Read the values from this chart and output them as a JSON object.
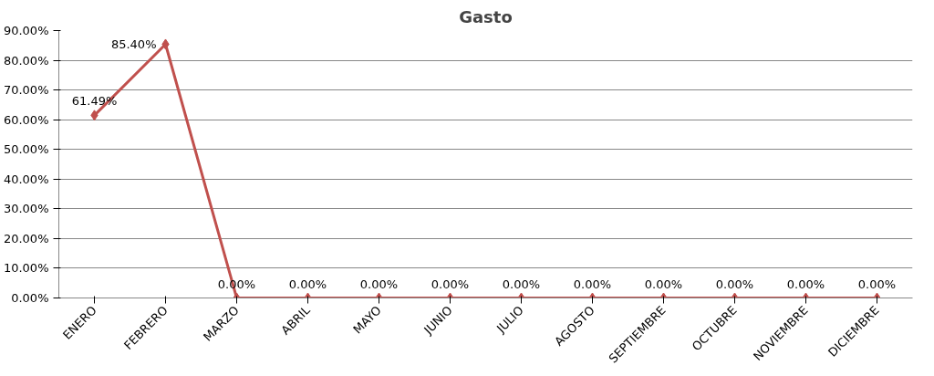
{
  "chart_data": {
    "type": "line",
    "title": "Gasto",
    "categories": [
      "ENERO",
      "FEBRERO",
      "MARZO",
      "ABRIL",
      "MAYO",
      "JUNIO",
      "JULIO",
      "AGOSTO",
      "SEPTIEMBRE",
      "OCTUBRE",
      "NOVIEMBRE",
      "DICIEMBRE"
    ],
    "series": [
      {
        "color": "#c0504d",
        "values": [
          61.49,
          85.4,
          0,
          0,
          0,
          0,
          0,
          0,
          0,
          0,
          0,
          0
        ],
        "value_labels": [
          "61.49%",
          "85.40%",
          "0.00%",
          "0.00%",
          "0.00%",
          "0.00%",
          "0.00%",
          "0.00%",
          "0.00%",
          "0.00%",
          "0.00%",
          "0.00%"
        ]
      }
    ],
    "ylim": [
      0,
      90
    ],
    "yticks": [
      {
        "value": 0,
        "label": "0.00%"
      },
      {
        "value": 10,
        "label": "10.00%"
      },
      {
        "value": 20,
        "label": "20.00%"
      },
      {
        "value": 30,
        "label": "30.00%"
      },
      {
        "value": 40,
        "label": "40.00%"
      },
      {
        "value": 50,
        "label": "50.00%"
      },
      {
        "value": 60,
        "label": "60.00%"
      },
      {
        "value": 70,
        "label": "70.00%"
      },
      {
        "value": 80,
        "label": "80.00%"
      },
      {
        "value": 90,
        "label": "90.00%"
      }
    ],
    "grid": "y",
    "legend": false,
    "marker": "diamond",
    "line_style": "solid"
  }
}
